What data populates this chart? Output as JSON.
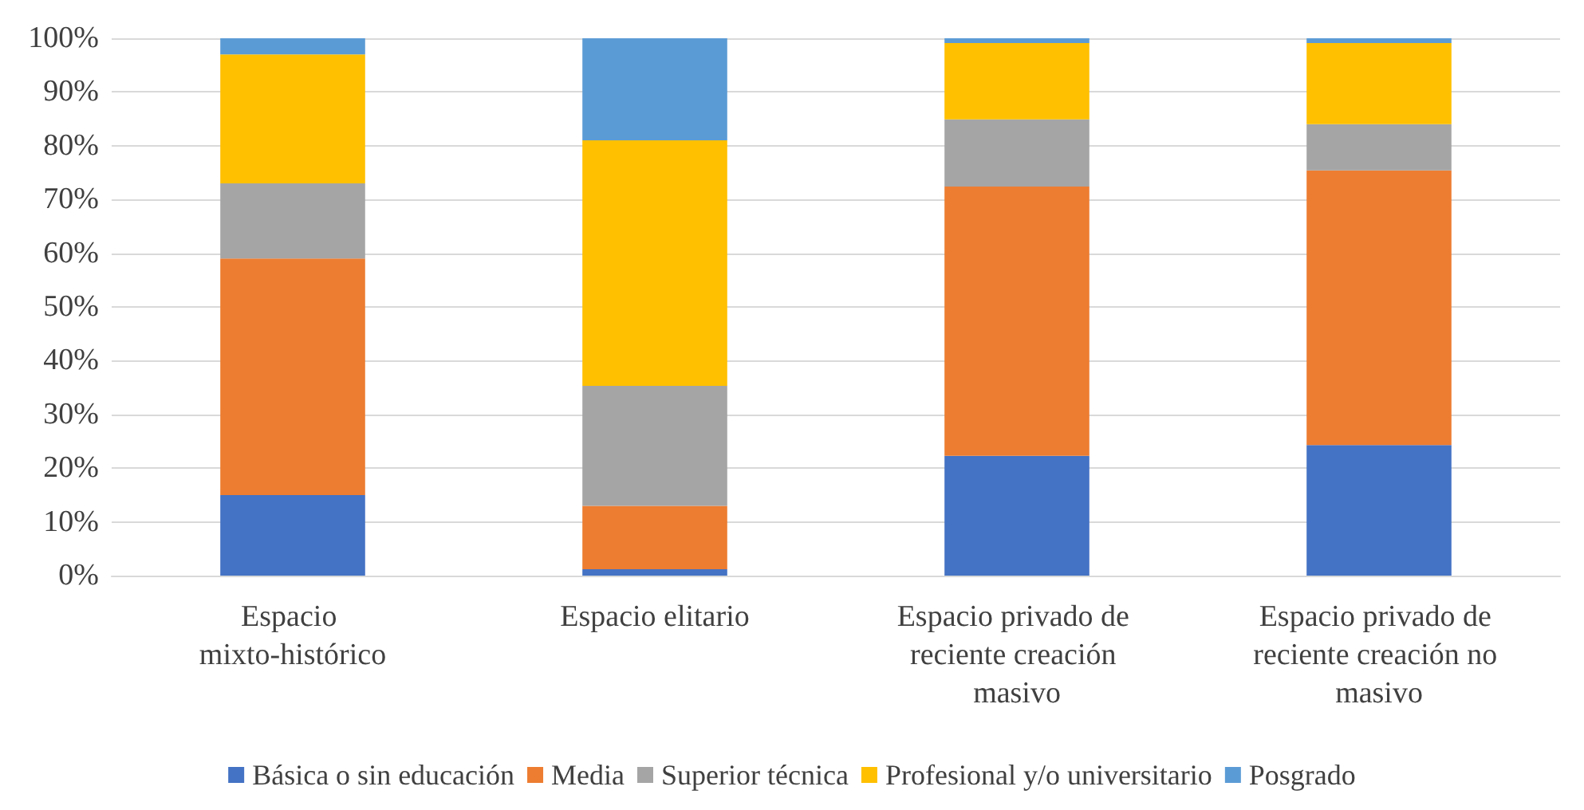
{
  "chart_data": {
    "type": "bar",
    "stacked": true,
    "categories": [
      "Espacio mixto-histórico",
      "Espacio elitario",
      "Espacio privado de reciente creación masivo",
      "Espacio privado de reciente creación no masivo"
    ],
    "series": [
      {
        "name": "Básica o sin educación",
        "color": "#4472c4",
        "values": [
          15,
          1.2,
          22.3,
          24.3
        ]
      },
      {
        "name": "Media",
        "color": "#ed7d31",
        "values": [
          44,
          11.8,
          50.1,
          51.1
        ]
      },
      {
        "name": "Superior técnica",
        "color": "#a5a5a5",
        "values": [
          14,
          22.3,
          12.5,
          8.6
        ]
      },
      {
        "name": "Profesional y/o universitario",
        "color": "#ffc000",
        "values": [
          24,
          45.7,
          14.2,
          15.1
        ]
      },
      {
        "name": "Posgrado",
        "color": "#5b9bd5",
        "values": [
          3,
          19,
          0.9,
          0.9
        ]
      }
    ],
    "ylim": [
      0,
      100
    ],
    "yticks": [
      {
        "value": 0,
        "label": "0%"
      },
      {
        "value": 10,
        "label": "10%"
      },
      {
        "value": 20,
        "label": "20%"
      },
      {
        "value": 30,
        "label": "30%"
      },
      {
        "value": 40,
        "label": "40%"
      },
      {
        "value": 50,
        "label": "50%"
      },
      {
        "value": 60,
        "label": "60%"
      },
      {
        "value": 70,
        "label": "70%"
      },
      {
        "value": 80,
        "label": "80%"
      },
      {
        "value": 90,
        "label": "90%"
      },
      {
        "value": 100,
        "label": "100%"
      }
    ],
    "grid": "y",
    "legend": "bottom"
  }
}
